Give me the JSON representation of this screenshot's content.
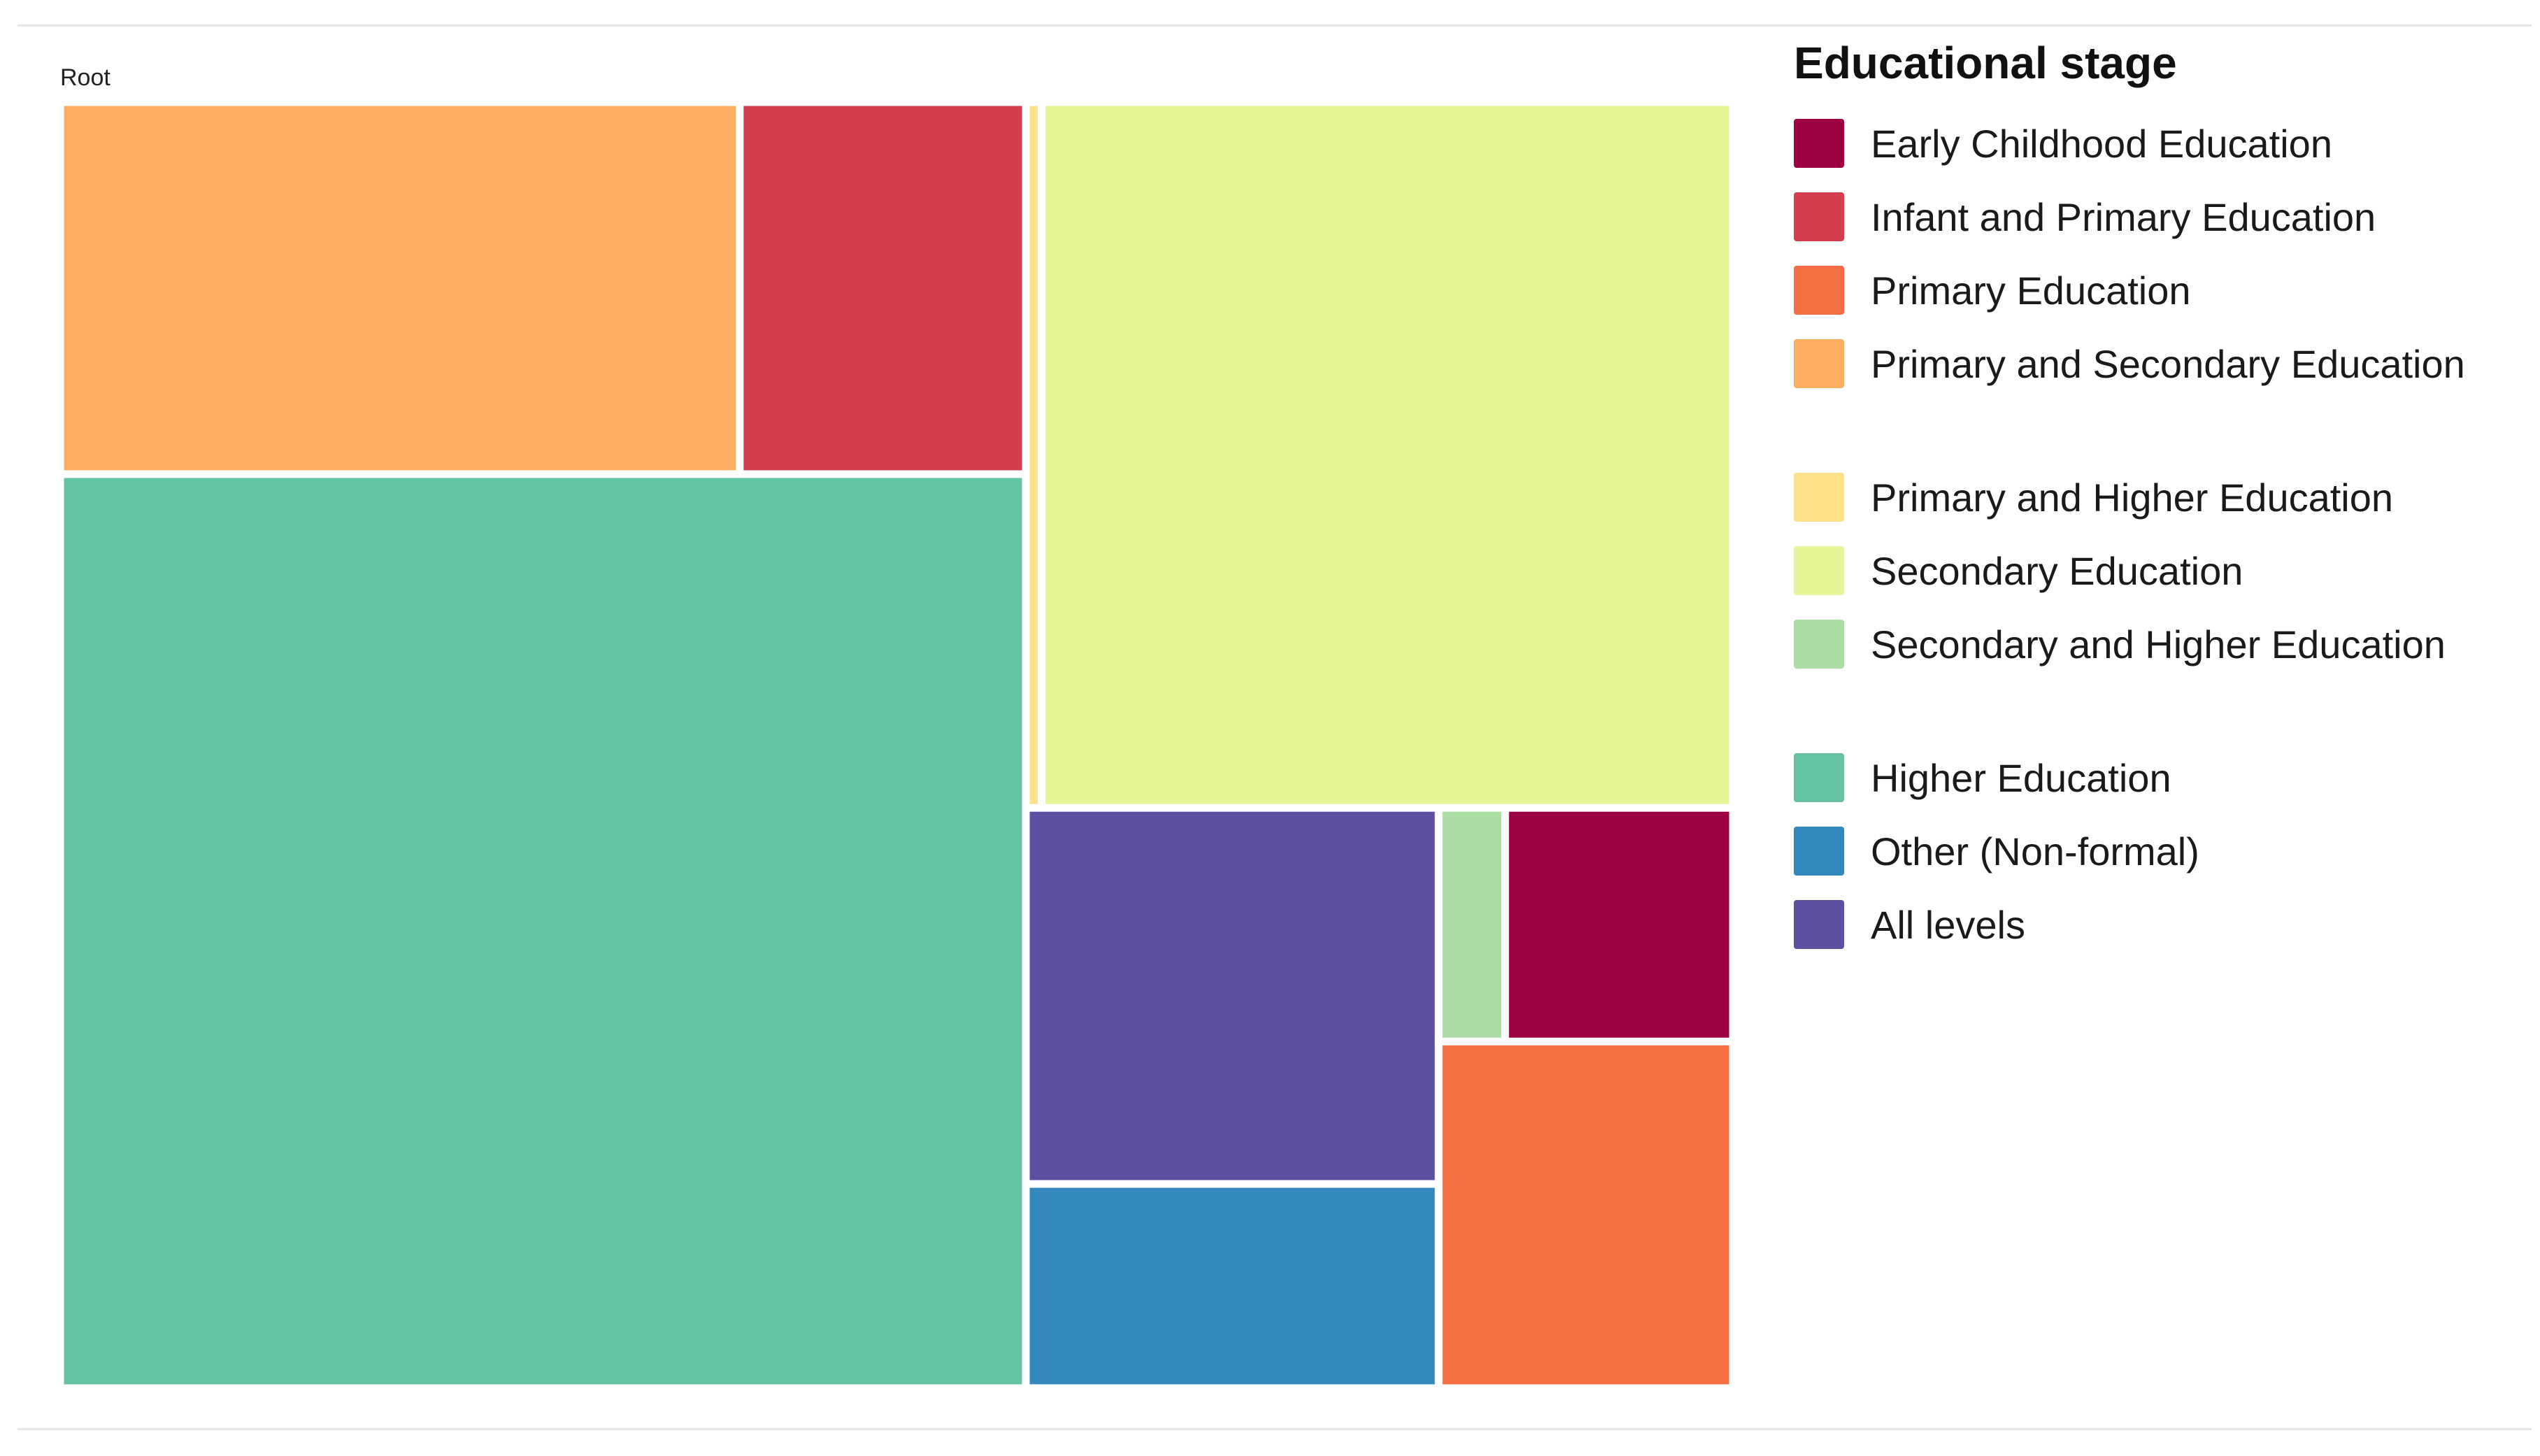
{
  "chart_data": {
    "type": "treemap",
    "root_label": "Root",
    "legend_title": "Educational  stage",
    "categories": [
      {
        "name": "Early Childhood Education",
        "color": "#9e0142",
        "value": 2.4
      },
      {
        "name": "Infant and Primary Education",
        "color": "#d53e4f",
        "value": 4.8
      },
      {
        "name": "Primary Education",
        "color": "#f46d43",
        "value": 4.6
      },
      {
        "name": "Primary and Secondary Education",
        "color": "#fdae61",
        "value": 11.4
      },
      {
        "name": "Primary and Higher Education",
        "color": "#fee08b",
        "value": 0.5
      },
      {
        "name": "Secondary Education",
        "color": "#e6f598",
        "value": 22.0
      },
      {
        "name": "Secondary and Higher Education",
        "color": "#abdda4",
        "value": 0.7
      },
      {
        "name": "Higher Education",
        "color": "#66c2a5",
        "value": 39.8
      },
      {
        "name": "Other (Non-formal)",
        "color": "#3288bd",
        "value": 3.8
      },
      {
        "name": "All levels",
        "color": "#5e4fa2",
        "value": 7.0
      }
    ],
    "legend_groups": [
      [
        "Early Childhood Education",
        "Infant and Primary Education",
        "Primary Education",
        "Primary and Secondary Education"
      ],
      [
        "Primary and Higher Education",
        "Secondary Education",
        "Secondary and Higher Education"
      ],
      [
        "Higher Education",
        "Other (Non-formal)",
        "All levels"
      ]
    ],
    "legend_position": "right"
  }
}
